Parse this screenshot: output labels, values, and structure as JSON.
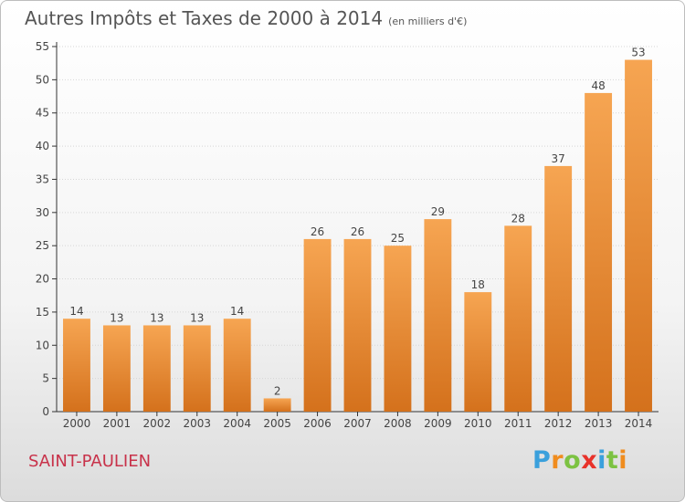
{
  "title": "Autres Impôts et Taxes de 2000 à 2014",
  "subtitle": "(en milliers d'€)",
  "commune": "SAINT-PAULIEN",
  "logo": {
    "letters": [
      "P",
      "r",
      "o",
      "x",
      "i",
      "t",
      "i"
    ],
    "colors": [
      "#3aa0dc",
      "#f08c1e",
      "#7cc242",
      "#e8322a",
      "#3aa0dc",
      "#7cc242",
      "#f08c1e"
    ]
  },
  "colors": {
    "bar_top": "#f6a552",
    "bar_bottom": "#d4711c",
    "axis": "#333333",
    "grid": "#d6d6d6"
  },
  "chart_data": {
    "type": "bar",
    "categories": [
      "2000",
      "2001",
      "2002",
      "2003",
      "2004",
      "2005",
      "2006",
      "2007",
      "2008",
      "2009",
      "2010",
      "2011",
      "2012",
      "2013",
      "2014"
    ],
    "values": [
      14,
      13,
      13,
      13,
      14,
      2,
      26,
      26,
      25,
      29,
      18,
      28,
      37,
      48,
      53
    ],
    "title": "Autres Impôts et Taxes de 2000 à 2014",
    "subtitle": "(en milliers d'€)",
    "xlabel": "",
    "ylabel": "",
    "ylim": [
      0,
      55
    ],
    "yticks": [
      0,
      5,
      10,
      15,
      20,
      25,
      30,
      35,
      40,
      45,
      50,
      55
    ],
    "grid": true
  }
}
